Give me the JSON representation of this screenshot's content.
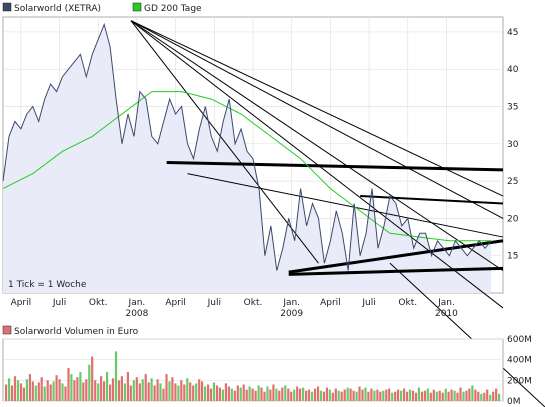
{
  "chart_data": [
    {
      "type": "line",
      "title": "",
      "legend": [
        {
          "name": "Solarworld (XETRA)",
          "color": "#3b4a6b"
        },
        {
          "name": "GD 200 Tage",
          "color": "#22cc22"
        }
      ],
      "note": "1 Tick = 1 Woche",
      "xlim": [
        0,
        168
      ],
      "ylim": [
        10,
        47
      ],
      "y_ticks": [
        15,
        20,
        25,
        30,
        35,
        40,
        45
      ],
      "x_tick_labels": [
        {
          "label": "April",
          "x": 6
        },
        {
          "label": "Juli",
          "x": 19
        },
        {
          "label": "Okt.",
          "x": 32
        },
        {
          "label": "Jan.",
          "x": 45
        },
        {
          "label": "April",
          "x": 58
        },
        {
          "label": "Juli",
          "x": 71
        },
        {
          "label": "Okt.",
          "x": 84
        },
        {
          "label": "Jan.",
          "x": 97
        },
        {
          "label": "April",
          "x": 110
        },
        {
          "label": "Juli",
          "x": 123
        },
        {
          "label": "Okt.",
          "x": 136
        },
        {
          "label": "Jan.",
          "x": 149
        }
      ],
      "year_labels": [
        {
          "label": "2008",
          "x": 45
        },
        {
          "label": "2009",
          "x": 97
        },
        {
          "label": "2010",
          "x": 149
        }
      ],
      "series": [
        {
          "name": "Solarworld (XETRA)",
          "color": "#3b4a6b",
          "x": [
            0,
            2,
            4,
            6,
            8,
            10,
            12,
            14,
            16,
            18,
            20,
            22,
            24,
            26,
            28,
            30,
            32,
            34,
            36,
            38,
            40,
            42,
            44,
            46,
            48,
            50,
            52,
            54,
            56,
            58,
            60,
            62,
            64,
            66,
            68,
            70,
            72,
            74,
            76,
            78,
            80,
            82,
            84,
            86,
            88,
            90,
            92,
            94,
            96,
            98,
            100,
            102,
            104,
            106,
            108,
            110,
            112,
            114,
            116,
            118,
            120,
            122,
            124,
            126,
            128,
            130,
            132,
            134,
            136,
            138,
            140,
            142,
            144,
            146,
            148,
            150,
            152,
            154,
            156,
            158,
            160,
            162,
            164
          ],
          "values": [
            25,
            31,
            33,
            32,
            34,
            35,
            33,
            36,
            38,
            37,
            39,
            40,
            41,
            42,
            39,
            42,
            44,
            46,
            43,
            36,
            30,
            34,
            31,
            37,
            36,
            31,
            30,
            33,
            36,
            34,
            35,
            30,
            28,
            32,
            35,
            31,
            29,
            33,
            36,
            30,
            32,
            29,
            28,
            24,
            15,
            19,
            13,
            16,
            20,
            17,
            24,
            19,
            22,
            20,
            14,
            17,
            21,
            18,
            13,
            22,
            15,
            18,
            24,
            16,
            19,
            23,
            22,
            19,
            20,
            16,
            18,
            18,
            15,
            17,
            16,
            15,
            17,
            16,
            15,
            16,
            17,
            16,
            17
          ]
        },
        {
          "name": "GD 200 Tage",
          "color": "#22cc22",
          "x": [
            0,
            10,
            20,
            30,
            40,
            50,
            60,
            70,
            80,
            90,
            100,
            110,
            120,
            130,
            140,
            150,
            160,
            164
          ],
          "values": [
            24,
            26,
            29,
            31,
            34,
            37,
            37,
            36,
            34,
            31,
            28,
            24,
            21,
            18,
            17.5,
            17,
            17,
            17
          ]
        }
      ],
      "trendlines_count": 10
    },
    {
      "type": "bar",
      "title": "",
      "legend": [
        {
          "name": "Solarworld Volumen in Euro",
          "color": "#e07070"
        }
      ],
      "y_ticks": [
        "0M",
        "200M",
        "400M",
        "600M"
      ],
      "ylim": [
        0,
        600
      ],
      "series": [
        {
          "name": "Solarworld Volumen in Euro",
          "values": [
            160,
            220,
            150,
            240,
            200,
            170,
            130,
            210,
            260,
            190,
            150,
            180,
            230,
            140,
            200,
            160,
            190,
            250,
            210,
            170,
            140,
            320,
            260,
            200,
            230,
            280,
            180,
            210,
            350,
            430,
            200,
            170,
            240,
            190,
            280,
            160,
            220,
            480,
            200,
            240,
            170,
            280,
            150,
            200,
            230,
            170,
            210,
            260,
            180,
            220,
            150,
            210,
            170,
            120,
            260,
            190,
            230,
            170,
            150,
            200,
            160,
            220,
            180,
            150,
            170,
            210,
            190,
            140,
            160,
            120,
            180,
            150,
            130,
            110,
            170,
            140,
            120,
            100,
            150,
            130,
            160,
            110,
            140,
            120,
            100,
            150,
            130,
            90,
            140,
            110,
            160,
            120,
            100,
            130,
            150,
            120,
            90,
            110,
            140,
            120,
            130,
            100,
            110,
            90,
            120,
            140,
            100,
            90,
            130,
            110,
            80,
            120,
            100,
            90,
            110,
            130,
            120,
            100,
            90,
            140,
            110,
            130,
            90,
            120,
            100,
            110,
            90,
            100,
            110,
            120,
            80,
            90,
            110,
            100,
            120,
            90,
            110,
            100,
            80,
            130,
            90,
            100,
            120,
            80,
            110,
            90,
            100,
            80,
            120,
            90,
            110,
            100,
            80,
            130,
            90,
            100,
            120,
            150,
            110,
            90,
            70,
            80,
            110,
            60,
            90,
            120,
            70
          ]
        }
      ]
    }
  ]
}
